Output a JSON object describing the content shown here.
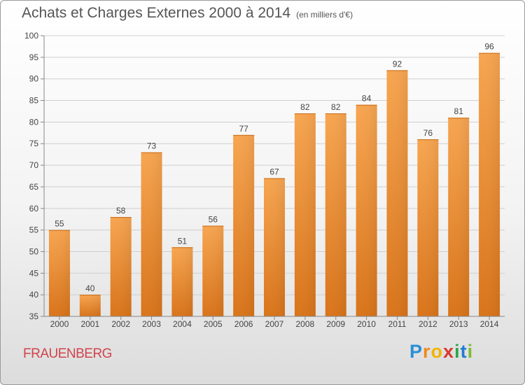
{
  "chart_data": {
    "type": "bar",
    "title": "Achats et Charges Externes 2000 à 2014",
    "subtitle": "(en milliers d'€)",
    "categories": [
      "2000",
      "2001",
      "2002",
      "2003",
      "2004",
      "2005",
      "2006",
      "2007",
      "2008",
      "2009",
      "2010",
      "2011",
      "2012",
      "2013",
      "2014"
    ],
    "values": [
      55,
      40,
      58,
      73,
      51,
      56,
      77,
      67,
      82,
      82,
      84,
      92,
      76,
      81,
      96
    ],
    "ylim": [
      35,
      100
    ],
    "yticks": [
      35,
      40,
      45,
      50,
      55,
      60,
      65,
      70,
      75,
      80,
      85,
      90,
      95,
      100
    ],
    "grid": true,
    "bar_color": "#f0902f"
  },
  "footer": {
    "location": "FRAUENBERG",
    "logo": "Proxiti"
  }
}
